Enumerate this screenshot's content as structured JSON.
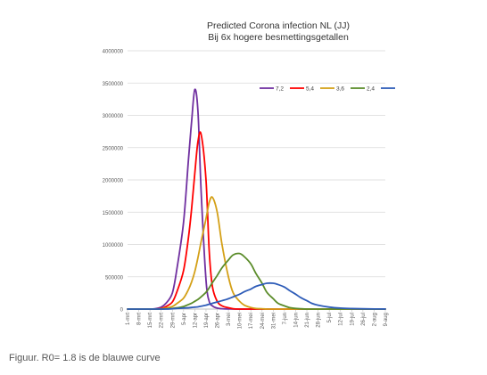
{
  "caption": "Figuur. R0= 1.8 is de blauwe curve",
  "chart_data": {
    "type": "line",
    "title": "Predicted Corona infection NL (JJ)",
    "subtitle": "Bij 6x hogere besmettingsgetallen",
    "xlabel": "",
    "ylabel": "",
    "ylim": [
      0,
      4000000
    ],
    "yticks": [
      "0",
      "500000",
      "1000000",
      "1500000",
      "2000000",
      "2500000",
      "3000000",
      "3500000",
      "4000000"
    ],
    "legend_position": "top-right",
    "grid": true,
    "categories": [
      "1-mrt",
      "8-mrt",
      "15-mrt",
      "22-mrt",
      "29-mrt",
      "5-apr",
      "12-apr",
      "19-apr",
      "26-apr",
      "3-mei",
      "10-mei",
      "17-mei",
      "24-mei",
      "31-mei",
      "7-jun",
      "14-jun",
      "21-jun",
      "28-jun",
      "5-jul",
      "12-jul",
      "19-jul",
      "26-jul",
      "2-aug",
      "9-aug"
    ],
    "x": [
      "1-mrt",
      "4-mrt",
      "8-mrt",
      "11-mrt",
      "15-mrt",
      "18-mrt",
      "22-mrt",
      "25-mrt",
      "29-mrt",
      "1-apr",
      "5-apr",
      "8-apr",
      "10-apr",
      "12-apr",
      "14-apr",
      "16-apr",
      "19-apr",
      "21-apr",
      "23-apr",
      "26-apr",
      "29-apr",
      "3-mei",
      "6-mei",
      "10-mei",
      "13-mei",
      "17-mei",
      "20-mei",
      "24-mei",
      "27-mei",
      "31-mei",
      "3-jun",
      "7-jun",
      "10-jun",
      "14-jun",
      "17-jun",
      "21-jun",
      "24-jun",
      "28-jun",
      "5-jul",
      "12-jul",
      "19-jul",
      "26-jul",
      "2-aug",
      "9-aug"
    ],
    "series": [
      {
        "name": "7,2",
        "color": "#7030a0",
        "values": [
          0,
          0,
          0,
          0,
          0,
          5000,
          30000,
          90000,
          250000,
          650000,
          1350000,
          2300000,
          2900000,
          3400000,
          3050000,
          1800000,
          450000,
          120000,
          50000,
          15000,
          5000,
          2000,
          0,
          0,
          0,
          0,
          0,
          0,
          0,
          0,
          0,
          0,
          0,
          0,
          0,
          0,
          0,
          0,
          0,
          0,
          0,
          0,
          0,
          0
        ]
      },
      {
        "name": "5,4",
        "color": "#ff0000",
        "values": [
          0,
          0,
          0,
          0,
          0,
          0,
          10000,
          40000,
          110000,
          280000,
          600000,
          1100000,
          1550000,
          2100000,
          2600000,
          2700000,
          2000000,
          900000,
          350000,
          120000,
          50000,
          20000,
          5000,
          0,
          0,
          0,
          0,
          0,
          0,
          0,
          0,
          0,
          0,
          0,
          0,
          0,
          0,
          0,
          0,
          0,
          0,
          0,
          0,
          0
        ]
      },
      {
        "name": "3,6",
        "color": "#d4a017",
        "values": [
          0,
          0,
          0,
          0,
          0,
          0,
          5000,
          15000,
          40000,
          90000,
          170000,
          300000,
          420000,
          580000,
          800000,
          1050000,
          1400000,
          1650000,
          1730000,
          1500000,
          1000000,
          500000,
          250000,
          120000,
          60000,
          25000,
          10000,
          5000,
          0,
          0,
          0,
          0,
          0,
          0,
          0,
          0,
          0,
          0,
          0,
          0,
          0,
          0,
          0,
          0
        ]
      },
      {
        "name": "2,4",
        "color": "#5b8c2a",
        "values": [
          0,
          0,
          0,
          0,
          0,
          0,
          0,
          5000,
          10000,
          20000,
          40000,
          70000,
          90000,
          120000,
          150000,
          190000,
          260000,
          330000,
          410000,
          520000,
          640000,
          760000,
          840000,
          860000,
          810000,
          700000,
          560000,
          400000,
          260000,
          160000,
          90000,
          50000,
          25000,
          10000,
          5000,
          0,
          0,
          0,
          0,
          0,
          0,
          0,
          0,
          0
        ]
      },
      {
        "name": "",
        "color": "#2e5cb8",
        "values": [
          0,
          0,
          0,
          0,
          0,
          0,
          0,
          0,
          5000,
          10000,
          15000,
          20000,
          25000,
          30000,
          35000,
          45000,
          60000,
          75000,
          90000,
          110000,
          130000,
          160000,
          190000,
          230000,
          270000,
          310000,
          350000,
          380000,
          400000,
          400000,
          380000,
          340000,
          290000,
          230000,
          180000,
          130000,
          90000,
          60000,
          30000,
          15000,
          8000,
          4000,
          2000,
          1000
        ]
      }
    ]
  }
}
